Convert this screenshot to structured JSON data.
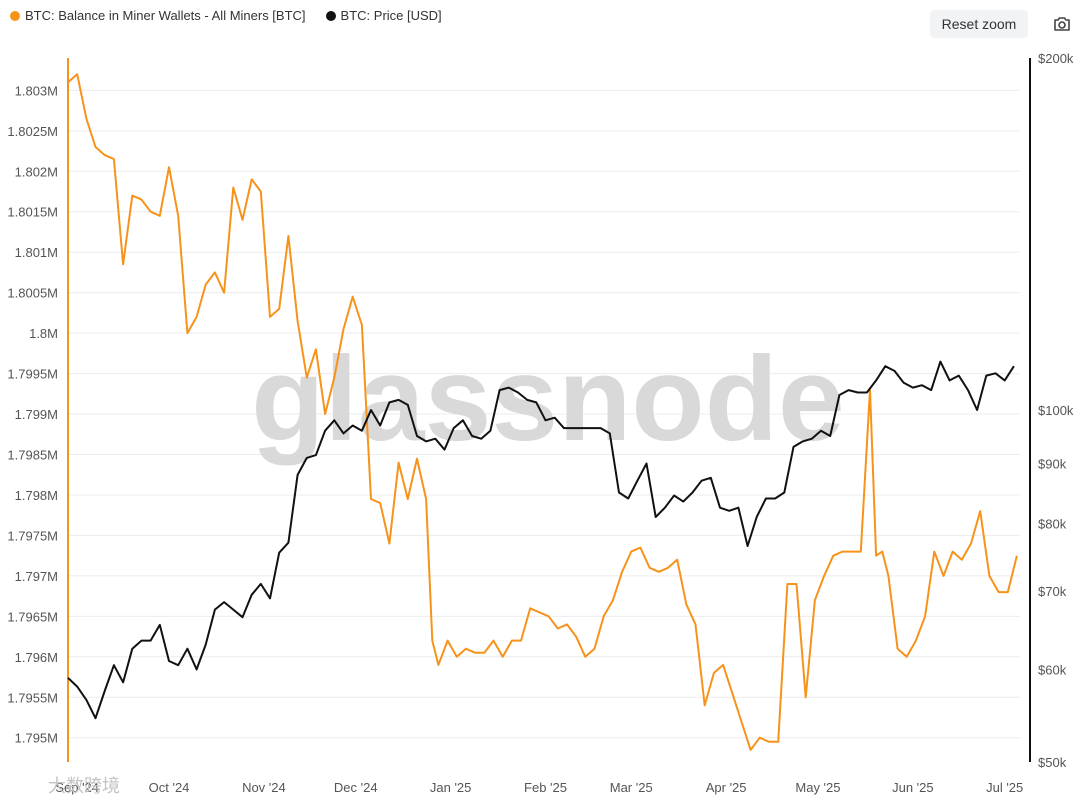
{
  "legend": {
    "series1": "BTC: Balance in Miner Wallets - All Miners [BTC]",
    "series2": "BTC: Price [USD]"
  },
  "toolbar": {
    "reset_zoom": "Reset zoom",
    "camera_icon": "camera-icon"
  },
  "watermark": {
    "main": "glassnode",
    "corner": "大数跨境"
  },
  "colors": {
    "balance": "#f7931a",
    "price": "#111111",
    "grid": "#ececec"
  },
  "chart_data": {
    "type": "line",
    "x_ticks": [
      "Sep '24",
      "Oct '24",
      "Nov '24",
      "Dec '24",
      "Jan '25",
      "Feb '25",
      "Mar '25",
      "Apr '25",
      "May '25",
      "Jun '25",
      "Jul '25"
    ],
    "y_left_ticks": [
      "1.795M",
      "1.7955M",
      "1.796M",
      "1.7965M",
      "1.797M",
      "1.7975M",
      "1.798M",
      "1.7985M",
      "1.799M",
      "1.7995M",
      "1.8M",
      "1.8005M",
      "1.801M",
      "1.8015M",
      "1.802M",
      "1.8025M",
      "1.803M"
    ],
    "y_left_tick_values": [
      1795000,
      1795500,
      1796000,
      1796500,
      1797000,
      1797500,
      1798000,
      1798500,
      1799000,
      1799500,
      1800000,
      1800500,
      1801000,
      1801500,
      1802000,
      1802500,
      1803000
    ],
    "y_left_range": [
      1794700,
      1803400
    ],
    "y_right_ticks": [
      "$50k",
      "$60k",
      "$70k",
      "$80k",
      "$90k",
      "$100k",
      "$200k"
    ],
    "y_right_tick_values": [
      50000,
      60000,
      70000,
      80000,
      90000,
      100000,
      200000
    ],
    "y_right_range": [
      50000,
      200000
    ],
    "y_right_scale": "log",
    "grid": true,
    "legend_position": "top-left",
    "series": [
      {
        "name": "BTC: Balance in Miner Wallets - All Miners [BTC]",
        "axis": "left",
        "x": [
          "2024-08-29",
          "2024-09-01",
          "2024-09-04",
          "2024-09-07",
          "2024-09-10",
          "2024-09-13",
          "2024-09-16",
          "2024-09-19",
          "2024-09-22",
          "2024-09-25",
          "2024-09-28",
          "2024-10-01",
          "2024-10-04",
          "2024-10-07",
          "2024-10-10",
          "2024-10-13",
          "2024-10-16",
          "2024-10-19",
          "2024-10-22",
          "2024-10-25",
          "2024-10-28",
          "2024-10-31",
          "2024-11-03",
          "2024-11-06",
          "2024-11-09",
          "2024-11-12",
          "2024-11-15",
          "2024-11-18",
          "2024-11-21",
          "2024-11-24",
          "2024-11-27",
          "2024-11-30",
          "2024-12-03",
          "2024-12-06",
          "2024-12-09",
          "2024-12-12",
          "2024-12-15",
          "2024-12-18",
          "2024-12-21",
          "2024-12-24",
          "2024-12-26",
          "2024-12-28",
          "2024-12-31",
          "2025-01-03",
          "2025-01-06",
          "2025-01-09",
          "2025-01-12",
          "2025-01-15",
          "2025-01-18",
          "2025-01-21",
          "2025-01-24",
          "2025-01-27",
          "2025-01-30",
          "2025-02-02",
          "2025-02-05",
          "2025-02-08",
          "2025-02-11",
          "2025-02-14",
          "2025-02-17",
          "2025-02-20",
          "2025-02-23",
          "2025-02-26",
          "2025-03-01",
          "2025-03-04",
          "2025-03-07",
          "2025-03-10",
          "2025-03-13",
          "2025-03-16",
          "2025-03-19",
          "2025-03-22",
          "2025-03-25",
          "2025-03-28",
          "2025-03-31",
          "2025-04-03",
          "2025-04-06",
          "2025-04-09",
          "2025-04-12",
          "2025-04-15",
          "2025-04-18",
          "2025-04-21",
          "2025-04-24",
          "2025-04-27",
          "2025-04-30",
          "2025-05-03",
          "2025-05-06",
          "2025-05-09",
          "2025-05-12",
          "2025-05-15",
          "2025-05-18",
          "2025-05-20",
          "2025-05-22",
          "2025-05-24",
          "2025-05-27",
          "2025-05-30",
          "2025-06-02",
          "2025-06-05",
          "2025-06-08",
          "2025-06-11",
          "2025-06-14",
          "2025-06-17",
          "2025-06-20",
          "2025-06-23",
          "2025-06-26",
          "2025-06-29",
          "2025-07-02",
          "2025-07-05"
        ],
        "y": [
          1803100,
          1803200,
          1802650,
          1802300,
          1802200,
          1802150,
          1800850,
          1801700,
          1801650,
          1801500,
          1801450,
          1802050,
          1801450,
          1800000,
          1800200,
          1800600,
          1800750,
          1800500,
          1801800,
          1801400,
          1801900,
          1801750,
          1800200,
          1800300,
          1801200,
          1800150,
          1799450,
          1799800,
          1799000,
          1799450,
          1800050,
          1800450,
          1800100,
          1797950,
          1797900,
          1797400,
          1798400,
          1797950,
          1798450,
          1797950,
          1796200,
          1795900,
          1796200,
          1796000,
          1796100,
          1796050,
          1796050,
          1796200,
          1796000,
          1796200,
          1796200,
          1796600,
          1796550,
          1796500,
          1796350,
          1796400,
          1796250,
          1796000,
          1796100,
          1796500,
          1796700,
          1797050,
          1797300,
          1797350,
          1797100,
          1797050,
          1797100,
          1797200,
          1796650,
          1796400,
          1795400,
          1795800,
          1795900,
          1795550,
          1795200,
          1794850,
          1795000,
          1794950,
          1794950,
          1796900,
          1796900,
          1795500,
          1796700,
          1797000,
          1797250,
          1797300,
          1797300,
          1797300,
          1799300,
          1797250,
          1797300,
          1797000,
          1796100,
          1796000,
          1796200,
          1796500,
          1797300,
          1797000,
          1797300,
          1797200,
          1797400,
          1797800,
          1797000,
          1796800,
          1796800,
          1797250
        ]
      },
      {
        "name": "BTC: Price [USD]",
        "axis": "right",
        "x": [
          "2024-08-29",
          "2024-09-01",
          "2024-09-04",
          "2024-09-07",
          "2024-09-10",
          "2024-09-13",
          "2024-09-16",
          "2024-09-19",
          "2024-09-22",
          "2024-09-25",
          "2024-09-28",
          "2024-10-01",
          "2024-10-04",
          "2024-10-07",
          "2024-10-10",
          "2024-10-13",
          "2024-10-16",
          "2024-10-19",
          "2024-10-22",
          "2024-10-25",
          "2024-10-28",
          "2024-10-31",
          "2024-11-03",
          "2024-11-06",
          "2024-11-09",
          "2024-11-12",
          "2024-11-15",
          "2024-11-18",
          "2024-11-21",
          "2024-11-24",
          "2024-11-27",
          "2024-11-30",
          "2024-12-03",
          "2024-12-06",
          "2024-12-09",
          "2024-12-12",
          "2024-12-15",
          "2024-12-18",
          "2024-12-21",
          "2024-12-24",
          "2024-12-27",
          "2024-12-30",
          "2025-01-02",
          "2025-01-05",
          "2025-01-08",
          "2025-01-11",
          "2025-01-14",
          "2025-01-17",
          "2025-01-20",
          "2025-01-23",
          "2025-01-26",
          "2025-01-29",
          "2025-02-01",
          "2025-02-04",
          "2025-02-07",
          "2025-02-10",
          "2025-02-13",
          "2025-02-16",
          "2025-02-19",
          "2025-02-22",
          "2025-02-25",
          "2025-02-28",
          "2025-03-03",
          "2025-03-06",
          "2025-03-09",
          "2025-03-12",
          "2025-03-15",
          "2025-03-18",
          "2025-03-21",
          "2025-03-24",
          "2025-03-27",
          "2025-03-30",
          "2025-04-02",
          "2025-04-05",
          "2025-04-08",
          "2025-04-11",
          "2025-04-14",
          "2025-04-17",
          "2025-04-20",
          "2025-04-23",
          "2025-04-26",
          "2025-04-29",
          "2025-05-02",
          "2025-05-05",
          "2025-05-08",
          "2025-05-11",
          "2025-05-14",
          "2025-05-17",
          "2025-05-20",
          "2025-05-23",
          "2025-05-26",
          "2025-05-29",
          "2025-06-01",
          "2025-06-04",
          "2025-06-07",
          "2025-06-10",
          "2025-06-13",
          "2025-06-16",
          "2025-06-19",
          "2025-06-22",
          "2025-06-25",
          "2025-06-28",
          "2025-07-01",
          "2025-07-04"
        ],
        "y": [
          59000,
          58000,
          56500,
          54500,
          57500,
          60500,
          58500,
          62500,
          63500,
          63500,
          65500,
          61000,
          60500,
          62500,
          60000,
          63000,
          67500,
          68500,
          67500,
          66500,
          69500,
          71000,
          69000,
          75500,
          77000,
          88000,
          91000,
          91500,
          96000,
          98000,
          95500,
          97000,
          96000,
          100000,
          97000,
          101500,
          102000,
          101000,
          95000,
          94000,
          94500,
          92500,
          96500,
          98000,
          95000,
          94500,
          96000,
          104000,
          104500,
          103500,
          102000,
          101500,
          98000,
          98500,
          96500,
          96500,
          96500,
          96500,
          96500,
          95500,
          85000,
          84000,
          87000,
          90000,
          81000,
          82500,
          84500,
          83500,
          85000,
          87000,
          87500,
          82500,
          82000,
          82500,
          76500,
          81000,
          84000,
          84000,
          85000,
          93000,
          94000,
          94500,
          96000,
          95000,
          103000,
          104000,
          103500,
          103500,
          106000,
          109000,
          108000,
          105500,
          104500,
          105000,
          104000,
          110000,
          106000,
          107000,
          104000,
          100000,
          107000,
          107500,
          106000,
          109000
        ]
      }
    ]
  }
}
